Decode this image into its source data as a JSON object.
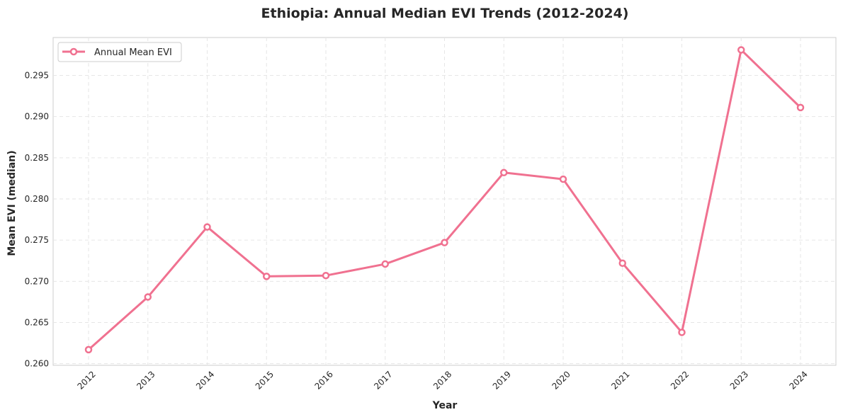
{
  "chart_data": {
    "type": "line",
    "title": "Ethiopia: Annual Median EVI Trends (2012-2024)",
    "xlabel": "Year",
    "ylabel": "Mean EVI (median)",
    "categories": [
      "2012",
      "2013",
      "2014",
      "2015",
      "2016",
      "2017",
      "2018",
      "2019",
      "2020",
      "2021",
      "2022",
      "2023",
      "2024"
    ],
    "series": [
      {
        "name": "Annual Mean EVI",
        "color": "#f07190",
        "values": [
          0.2617,
          0.2681,
          0.2766,
          0.2706,
          0.2707,
          0.2721,
          0.2747,
          0.2832,
          0.2824,
          0.2722,
          0.2638,
          0.2981,
          0.2911
        ]
      }
    ],
    "ylim": [
      0.2598,
      0.2996
    ],
    "yticks": [
      "0.260",
      "0.265",
      "0.270",
      "0.275",
      "0.280",
      "0.285",
      "0.290",
      "0.295"
    ],
    "grid": true,
    "legend_position": "top-left"
  }
}
